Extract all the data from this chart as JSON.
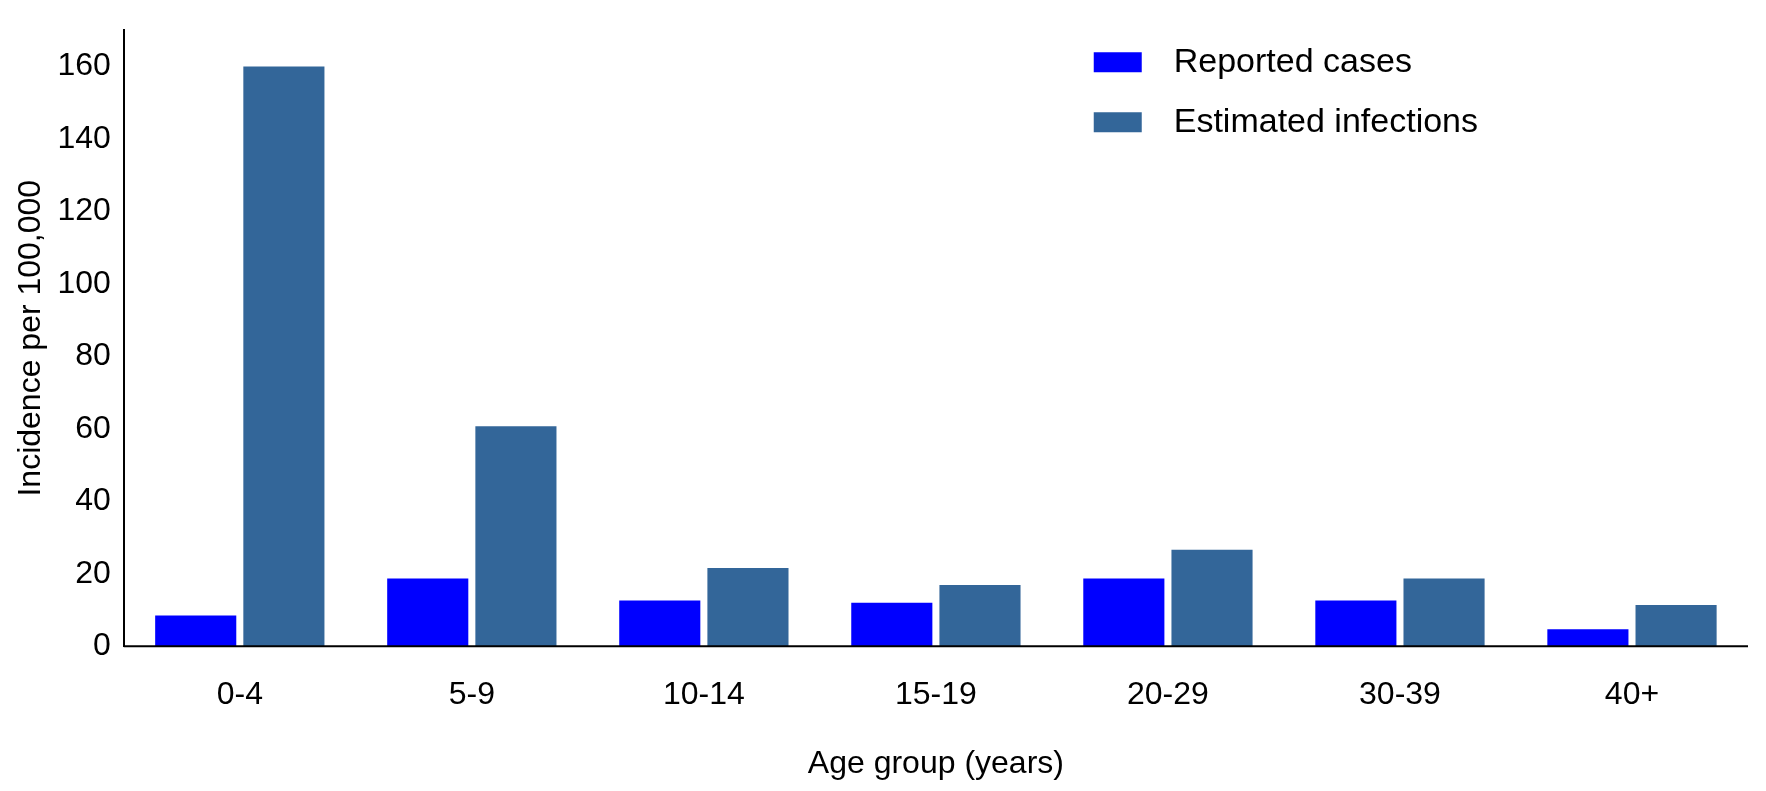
{
  "chart_data": {
    "type": "bar",
    "xlabel": "Age group (years)",
    "ylabel": "Incidence per 100,000",
    "categories": [
      "0-4",
      "5-9",
      "10-14",
      "15-19",
      "20-29",
      "30-39",
      "40+"
    ],
    "series": [
      {
        "name": "Reported cases",
        "color": "#0000ff",
        "values": [
          8.5,
          18.7,
          12.6,
          12,
          18.7,
          12.6,
          4.7
        ]
      },
      {
        "name": "Estimated infections",
        "color": "#336699",
        "values": [
          160,
          60.7,
          21.6,
          16.9,
          26.6,
          18.7,
          11.4
        ]
      }
    ],
    "ylim": [
      0,
      170
    ],
    "yticks": [
      0,
      20,
      40,
      60,
      80,
      100,
      120,
      140,
      160
    ],
    "grid": false,
    "legend": "top right"
  }
}
